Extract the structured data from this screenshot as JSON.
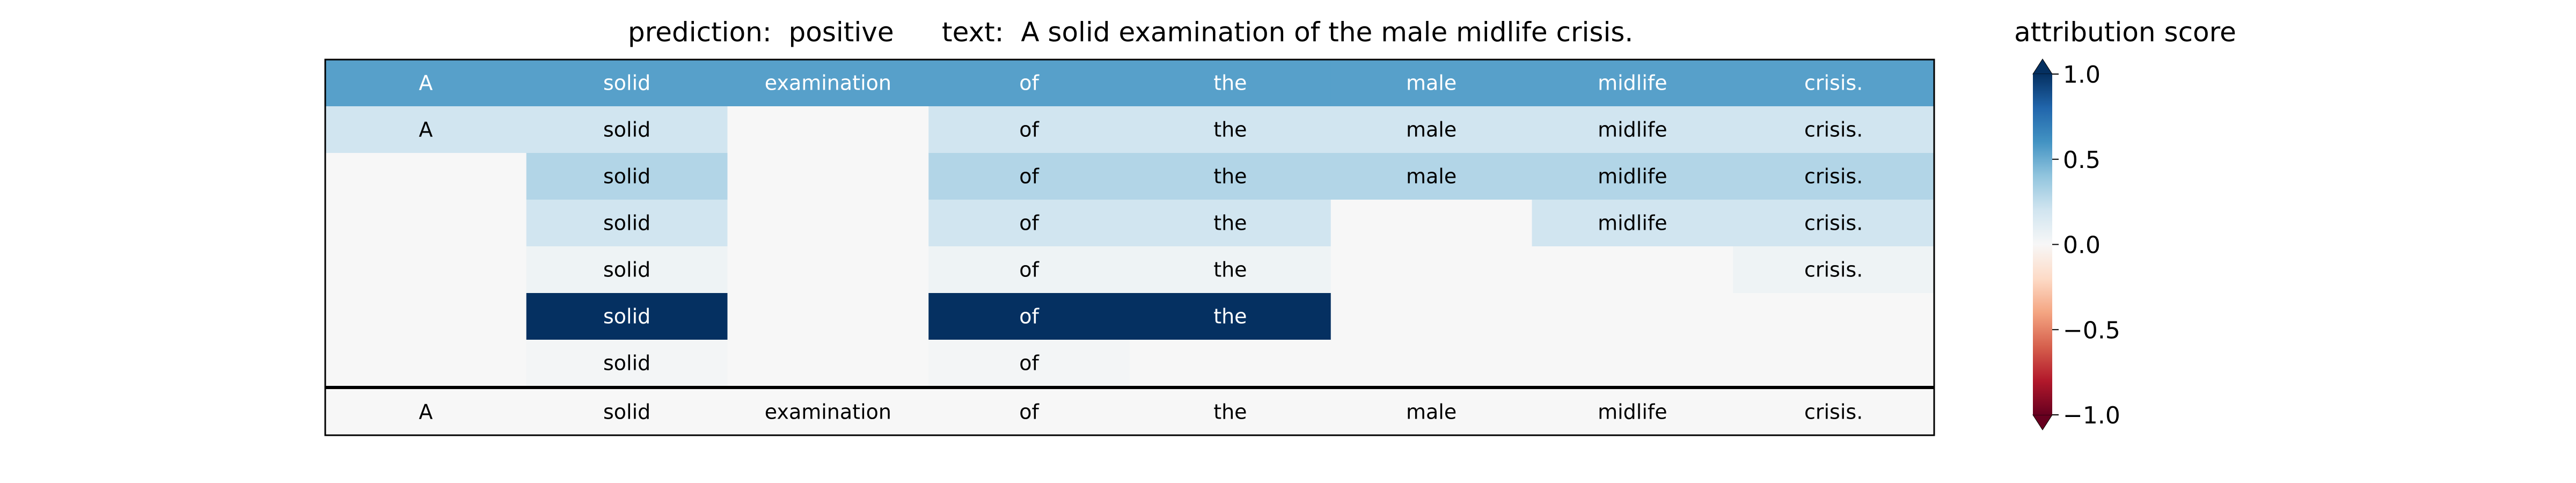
{
  "chart_data": {
    "type": "heatmap",
    "title_left": "prediction:  positive",
    "title_right": "text:  A solid examination of the male midlife crisis.",
    "columns": [
      "A",
      "solid",
      "examination",
      "of",
      "the",
      "male",
      "midlife",
      "crisis."
    ],
    "rows": [
      {
        "tokens": [
          "A",
          "solid",
          "examination",
          "of",
          "the",
          "male",
          "midlife",
          "crisis."
        ],
        "values": [
          0.55,
          0.55,
          0.55,
          0.55,
          0.55,
          0.55,
          0.55,
          0.55
        ]
      },
      {
        "tokens": [
          "A",
          "solid",
          "",
          "of",
          "the",
          "male",
          "midlife",
          "crisis."
        ],
        "values": [
          0.2,
          0.2,
          0.0,
          0.2,
          0.2,
          0.2,
          0.2,
          0.2
        ]
      },
      {
        "tokens": [
          "",
          "solid",
          "",
          "of",
          "the",
          "male",
          "midlife",
          "crisis."
        ],
        "values": [
          0.0,
          0.3,
          0.0,
          0.3,
          0.3,
          0.3,
          0.3,
          0.3
        ]
      },
      {
        "tokens": [
          "",
          "solid",
          "",
          "of",
          "the",
          "",
          "midlife",
          "crisis."
        ],
        "values": [
          0.0,
          0.2,
          0.0,
          0.2,
          0.2,
          0.0,
          0.2,
          0.2
        ]
      },
      {
        "tokens": [
          "",
          "solid",
          "",
          "of",
          "the",
          "",
          "",
          "crisis."
        ],
        "values": [
          0.0,
          0.05,
          0.0,
          0.05,
          0.05,
          0.0,
          0.0,
          0.05
        ]
      },
      {
        "tokens": [
          "",
          "solid",
          "",
          "of",
          "the",
          "",
          "",
          ""
        ],
        "values": [
          0.0,
          1.0,
          0.0,
          1.0,
          1.0,
          0.0,
          0.0,
          0.0
        ]
      },
      {
        "tokens": [
          "",
          "solid",
          "",
          "of",
          "",
          "",
          "",
          ""
        ],
        "values": [
          0.0,
          0.02,
          0.0,
          0.02,
          0.0,
          0.0,
          0.0,
          0.0
        ]
      }
    ],
    "bottom_row": {
      "tokens": [
        "A",
        "solid",
        "examination",
        "of",
        "the",
        "male",
        "midlife",
        "crisis."
      ]
    },
    "colorbar": {
      "label": "attribution score",
      "ticks": [
        {
          "value": 1.0,
          "label": "1.0"
        },
        {
          "value": 0.5,
          "label": "0.5"
        },
        {
          "value": 0.0,
          "label": "0.0"
        },
        {
          "value": -0.5,
          "label": "−0.5"
        },
        {
          "value": -1.0,
          "label": "−1.0"
        }
      ],
      "range": [
        -1.0,
        1.0
      ],
      "colormap": "RdBu"
    }
  }
}
